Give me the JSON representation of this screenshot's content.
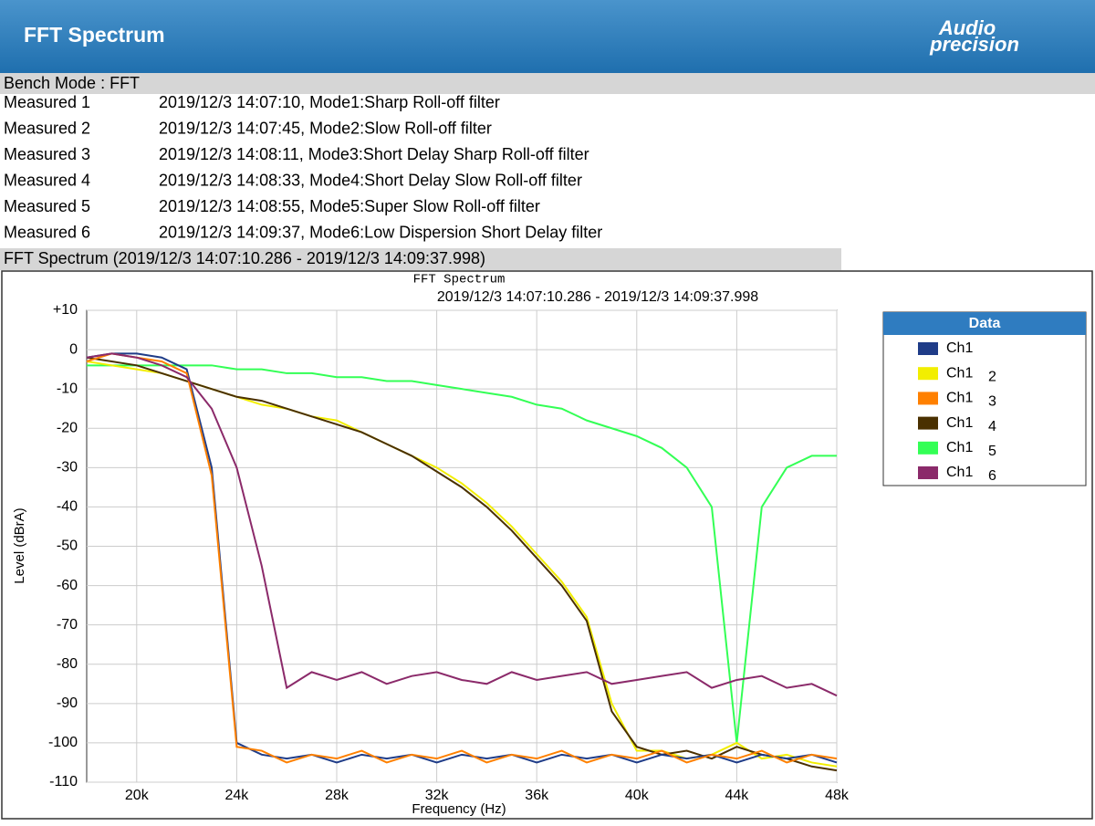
{
  "header": {
    "title": "FFT Spectrum",
    "logo": [
      "Audio",
      "precision"
    ]
  },
  "bench_mode": "Bench Mode : FFT",
  "measurements": [
    {
      "label": "Measured 1",
      "text": "2019/12/3 14:07:10, Mode1:Sharp Roll-off filter"
    },
    {
      "label": "Measured 2",
      "text": "2019/12/3 14:07:45, Mode2:Slow Roll-off filter"
    },
    {
      "label": "Measured 3",
      "text": "2019/12/3 14:08:11, Mode3:Short Delay Sharp Roll-off filter"
    },
    {
      "label": "Measured 4",
      "text": "2019/12/3 14:08:33, Mode4:Short Delay Slow Roll-off filter"
    },
    {
      "label": "Measured 5",
      "text": "2019/12/3 14:08:55, Mode5:Super Slow Roll-off filter"
    },
    {
      "label": "Measured 6",
      "text": "2019/12/3 14:09:37, Mode6:Low Dispersion Short Delay filter"
    }
  ],
  "section_title": "FFT Spectrum (2019/12/3 14:07:10.286 - 2019/12/3 14:09:37.998)",
  "chart_data": {
    "type": "line",
    "title": "FFT Spectrum",
    "subtitle": "2019/12/3 14:07:10.286 - 2019/12/3 14:09:37.998",
    "x_label": "Frequency (Hz)",
    "y_label": "Level (dBrA)",
    "legend_title": "Data",
    "grid": true,
    "xlim": [
      18000,
      48000
    ],
    "ylim": [
      -110,
      10
    ],
    "xticks": [
      {
        "value": 20000,
        "label": "20k"
      },
      {
        "value": 24000,
        "label": "24k"
      },
      {
        "value": 28000,
        "label": "28k"
      },
      {
        "value": 32000,
        "label": "32k"
      },
      {
        "value": 36000,
        "label": "36k"
      },
      {
        "value": 40000,
        "label": "40k"
      },
      {
        "value": 44000,
        "label": "44k"
      },
      {
        "value": 48000,
        "label": "48k"
      }
    ],
    "yticks": [
      {
        "value": 10,
        "label": "+10"
      },
      0,
      -10,
      -20,
      -30,
      -40,
      -50,
      -60,
      -70,
      -80,
      -90,
      -100,
      -110
    ],
    "x": [
      18000,
      19000,
      20000,
      21000,
      22000,
      23000,
      24000,
      25000,
      26000,
      27000,
      28000,
      29000,
      30000,
      31000,
      32000,
      33000,
      34000,
      35000,
      36000,
      37000,
      38000,
      39000,
      40000,
      41000,
      42000,
      43000,
      44000,
      45000,
      46000,
      47000,
      48000
    ],
    "series": [
      {
        "name": "Ch1",
        "color": "#1f3c88",
        "values": [
          -2,
          -1,
          -1,
          -2,
          -5,
          -30,
          -100,
          -103,
          -104,
          -103,
          -105,
          -103,
          -104,
          -103,
          -105,
          -103,
          -104,
          -103,
          -105,
          -103,
          -104,
          -103,
          -105,
          -103,
          -104,
          -103,
          -105,
          -103,
          -104,
          -103,
          -105
        ]
      },
      {
        "name": "Ch1",
        "sub": "2",
        "color": "#f2ee00",
        "values": [
          -3,
          -4,
          -5,
          -6,
          -8,
          -10,
          -12,
          -14,
          -15,
          -17,
          -18,
          -21,
          -24,
          -27,
          -30,
          -34,
          -39,
          -45,
          -52,
          -59,
          -68,
          -90,
          -102,
          -102,
          -104,
          -103,
          -100,
          -104,
          -103,
          -105,
          -106
        ]
      },
      {
        "name": "Ch1",
        "sub": "3",
        "color": "#ff8000",
        "values": [
          -3,
          -1,
          -2,
          -3,
          -6,
          -32,
          -101,
          -102,
          -105,
          -103,
          -104,
          -102,
          -105,
          -103,
          -104,
          -102,
          -105,
          -103,
          -104,
          -102,
          -105,
          -103,
          -104,
          -102,
          -105,
          -103,
          -104,
          -102,
          -105,
          -103,
          -104
        ]
      },
      {
        "name": "Ch1",
        "sub": "4",
        "color": "#4a3000",
        "values": [
          -2,
          -3,
          -4,
          -6,
          -8,
          -10,
          -12,
          -13,
          -15,
          -17,
          -19,
          -21,
          -24,
          -27,
          -31,
          -35,
          -40,
          -46,
          -53,
          -60,
          -69,
          -92,
          -101,
          -103,
          -102,
          -104,
          -101,
          -103,
          -104,
          -106,
          -107
        ]
      },
      {
        "name": "Ch1",
        "sub": "5",
        "color": "#33ff55",
        "values": [
          -4,
          -4,
          -4,
          -4,
          -4,
          -4,
          -5,
          -5,
          -6,
          -6,
          -7,
          -7,
          -8,
          -8,
          -9,
          -10,
          -11,
          -12,
          -14,
          -15,
          -18,
          -20,
          -22,
          -25,
          -30,
          -40,
          -100,
          -40,
          -30,
          -27,
          -27
        ]
      },
      {
        "name": "Ch1",
        "sub": "6",
        "color": "#8b2a6a",
        "values": [
          -2,
          -1,
          -2,
          -4,
          -7,
          -15,
          -30,
          -55,
          -86,
          -82,
          -84,
          -82,
          -85,
          -83,
          -82,
          -84,
          -85,
          -82,
          -84,
          -83,
          -82,
          -85,
          -84,
          -83,
          -82,
          -86,
          -84,
          -83,
          -86,
          -85,
          -88
        ]
      }
    ]
  }
}
